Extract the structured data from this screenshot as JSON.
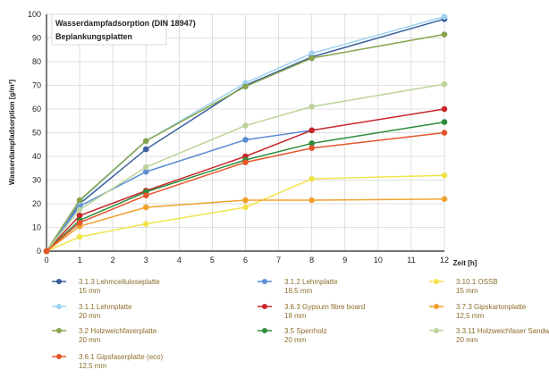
{
  "chart_data": {
    "type": "line",
    "title": "Wasserdampfadsorption (DIN 18947)",
    "subtitle": "Beplankungsplatten",
    "xlabel": "Zeit [h]",
    "ylabel": "Wasserdampfadsorption [g/m²]",
    "xlim": [
      0,
      12
    ],
    "ylim": [
      0,
      100
    ],
    "x_ticks": [
      0,
      1,
      2,
      3,
      4,
      5,
      6,
      7,
      8,
      9,
      10,
      11,
      12
    ],
    "y_ticks": [
      0,
      10,
      20,
      30,
      40,
      50,
      60,
      70,
      80,
      90,
      100
    ],
    "grid": true,
    "legend_position": "bottom",
    "x": [
      0,
      1,
      3,
      6,
      8,
      12
    ],
    "series": [
      {
        "code": "3.1.3",
        "name": "Lehmcelluloseplatte",
        "thickness": "15 mm",
        "color": "#3a5f9e",
        "values": [
          0,
          20,
          43,
          70,
          82,
          98
        ]
      },
      {
        "code": "3.1.2",
        "name": "Lehmplatte",
        "thickness": "18,5 mm",
        "color": "#5b8ed6",
        "values": [
          0,
          19,
          33.5,
          47,
          51,
          null
        ]
      },
      {
        "code": "3.10.1",
        "name": "OSSB",
        "thickness": "15 mm",
        "color": "#f2e34c",
        "values": [
          0,
          6,
          11.5,
          18.5,
          30.5,
          32
        ]
      },
      {
        "code": "3.1.1",
        "name": "Lehmplatte",
        "thickness": "20 mm",
        "color": "#9fd3f0",
        "values": [
          0,
          21,
          46.5,
          71,
          83.5,
          99
        ]
      },
      {
        "code": "3.6.3",
        "name": "Gypsum fibre board",
        "thickness": "18 mm",
        "color": "#c8252b",
        "values": [
          0,
          15,
          25.5,
          40,
          51,
          60
        ]
      },
      {
        "code": "3.7.3",
        "name": "Gipskartonplatte",
        "thickness": "12,5 mm",
        "color": "#f0a12e",
        "values": [
          0,
          10.5,
          18.5,
          21.5,
          21.5,
          22
        ]
      },
      {
        "code": "3.2",
        "name": "Holzweichfaserplatte",
        "thickness": "20 mm",
        "color": "#86a34e",
        "values": [
          0,
          21.5,
          46.5,
          69.5,
          81.5,
          91.5
        ]
      },
      {
        "code": "3.5",
        "name": "Sperrholz",
        "thickness": "20 mm",
        "color": "#2c8d3d",
        "values": [
          0,
          13,
          25,
          38.5,
          45.5,
          54.5
        ]
      },
      {
        "code": "3.3.11",
        "name": "Holzweichfaser Sandwichplatte",
        "thickness": "20 mm",
        "color": "#bdd49a",
        "values": [
          0,
          17.5,
          35.5,
          53,
          61,
          70.5
        ]
      },
      {
        "code": "3.6.1",
        "name": "Gipsfaserplatte (eco)",
        "thickness": "12,5 mm",
        "color": "#e5562a",
        "values": [
          0,
          12,
          23.5,
          37.5,
          43.5,
          50
        ]
      }
    ]
  }
}
